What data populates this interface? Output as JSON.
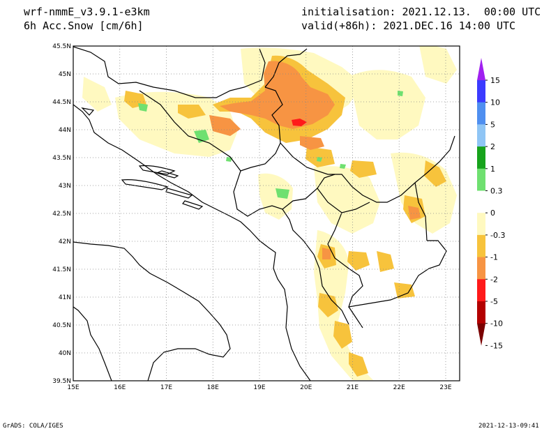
{
  "header": {
    "model": "wrf-nmmE_v3.9.1-e3km",
    "field": "6h Acc.Snow [cm/6h]",
    "init": "initialisation: 2021.12.13.  00:00 UTC",
    "valid": "valid(+86h): 2021.DEC.16 14:00 UTC"
  },
  "footer": {
    "left": "GrADS: COLA/IGES",
    "right": "2021-12-13-09:41"
  },
  "axes": {
    "lat_labels": [
      "45.5N",
      "45N",
      "44.5N",
      "44N",
      "43.5N",
      "43N",
      "42.5N",
      "42N",
      "41.5N",
      "41N",
      "40.5N",
      "40N",
      "39.5N"
    ],
    "lon_labels": [
      "15E",
      "16E",
      "17E",
      "18E",
      "19E",
      "20E",
      "21E",
      "22E",
      "23E"
    ],
    "lat_range": [
      39.5,
      45.5
    ],
    "lon_range": [
      15,
      23.3
    ],
    "grid": "dotted"
  },
  "colorbar": {
    "levels": [
      "15",
      "10",
      "5",
      "2",
      "1",
      "0.3",
      "0",
      "-0.3",
      "-1",
      "-2",
      "-5",
      "-10",
      "-15"
    ],
    "colors": [
      "#3b3bff",
      "#4f8ff0",
      "#8fc5f5",
      "#17a31c",
      "#6fe070",
      "#ffffff",
      "#fff9c0",
      "#f7c33c",
      "#f79443",
      "#ff1a1a",
      "#b30000"
    ],
    "top_cap_color": "#a020f0",
    "bottom_cap_color": "#7a0000"
  },
  "palette": {
    "land_light": "#fff9c0",
    "snow_mid": "#f7c33c",
    "snow_heavy": "#f79443",
    "snow_peak": "#ff1a1a",
    "green": "#6fe070"
  }
}
